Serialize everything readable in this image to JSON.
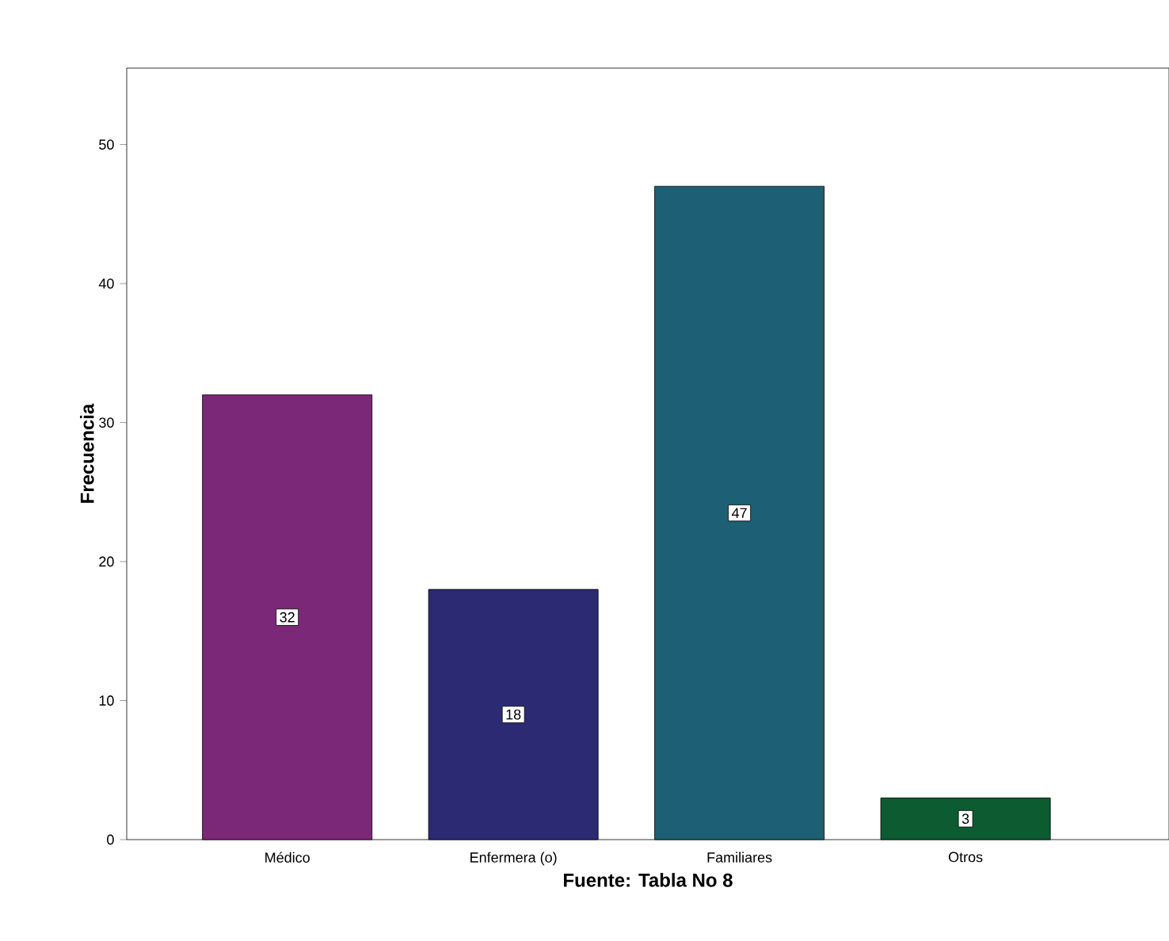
{
  "chart_data": {
    "type": "bar",
    "xlabel": "Fuente: Tabla No 8",
    "ylabel": "Frecuencia",
    "categories": [
      "Médico",
      "Enfermera (o)",
      "Familiares",
      "Otros"
    ],
    "values": [
      32,
      18,
      47,
      3
    ],
    "colors": [
      "#7b2878",
      "#2b2a73",
      "#1d5f75",
      "#0d5b31"
    ],
    "ylim": [
      0,
      55.5
    ],
    "yticks": [
      0,
      10,
      20,
      30,
      40,
      50
    ],
    "data_labels": true
  }
}
